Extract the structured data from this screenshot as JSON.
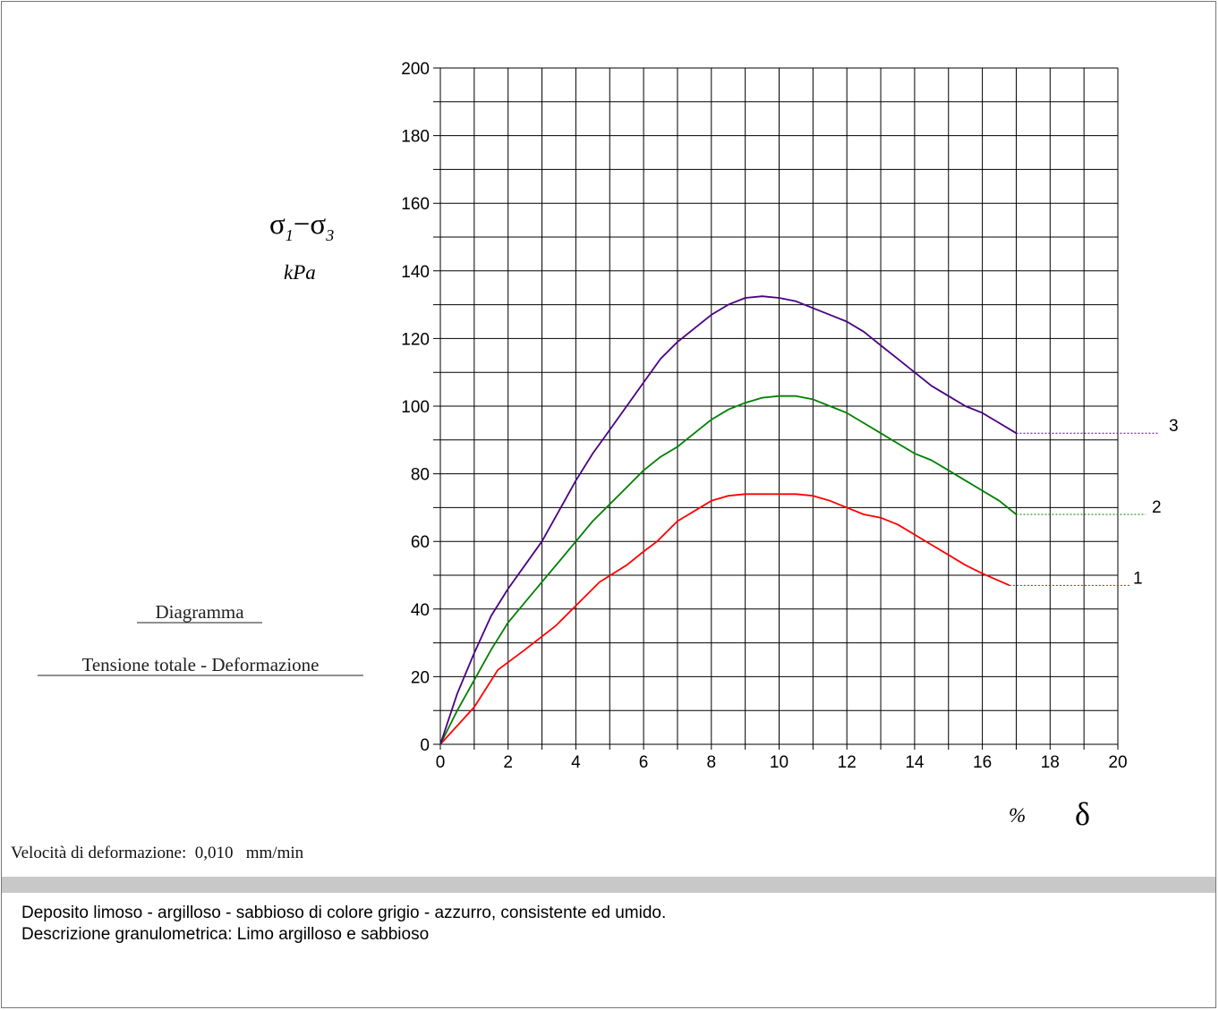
{
  "chart_data": {
    "type": "line",
    "y_label_main": "σ1−σ3",
    "y_label_sub1": "1",
    "y_label_sub3": "3",
    "y_unit": "kPa",
    "x_unit": "%",
    "x_symbol": "δ",
    "xlim": [
      0,
      20
    ],
    "ylim": [
      0,
      200
    ],
    "x_ticks": [
      "0",
      "2",
      "4",
      "6",
      "8",
      "10",
      "12",
      "14",
      "16",
      "18",
      "20"
    ],
    "y_ticks": [
      "0",
      "20",
      "40",
      "60",
      "80",
      "100",
      "120",
      "140",
      "160",
      "180",
      "200"
    ],
    "grid": true,
    "colors": {
      "1": "#ff0000",
      "2": "#008000",
      "3": "#4b0082"
    },
    "series": [
      {
        "name": "1",
        "color": "#ff0000",
        "x": [
          0,
          1,
          1.7,
          2.5,
          3.4,
          4.2,
          4.7,
          5.5,
          6,
          6.4,
          7,
          7.5,
          8,
          8.5,
          9,
          9.5,
          10,
          10.5,
          11,
          11.5,
          12,
          12.5,
          13,
          13.5,
          14,
          14.5,
          15,
          15.5,
          16,
          16.8
        ],
        "y": [
          0,
          11,
          22,
          28,
          35,
          43,
          48,
          53,
          57,
          60,
          66,
          69,
          72,
          73.5,
          74,
          74,
          74,
          74,
          73.5,
          72,
          70,
          68,
          67,
          65,
          62,
          59,
          56,
          53,
          50.5,
          47
        ]
      },
      {
        "name": "2",
        "color": "#008000",
        "x": [
          0,
          0.5,
          1,
          1.5,
          2,
          2.5,
          3,
          3.5,
          4,
          4.5,
          5,
          5.5,
          6,
          6.5,
          7,
          7.5,
          8,
          8.5,
          9,
          9.5,
          10,
          10.5,
          11,
          11.5,
          12,
          12.5,
          13,
          13.5,
          14,
          14.5,
          15,
          15.5,
          16,
          16.5,
          17
        ],
        "y": [
          0,
          10,
          19,
          28,
          36,
          42,
          48,
          54,
          60,
          66,
          71,
          76,
          81,
          85,
          88,
          92,
          96,
          99,
          101,
          102.5,
          103,
          103,
          102,
          100,
          98,
          95,
          92,
          89,
          86,
          84,
          81,
          78,
          75,
          72,
          68
        ]
      },
      {
        "name": "3",
        "color": "#4b0082",
        "x": [
          0,
          0.5,
          1,
          1.5,
          2,
          2.5,
          3,
          3.5,
          4,
          4.5,
          5,
          5.5,
          6,
          6.5,
          7,
          7.5,
          8,
          8.5,
          9,
          9.5,
          10,
          10.5,
          11,
          11.5,
          12,
          12.5,
          13,
          13.5,
          14,
          14.5,
          15,
          15.5,
          16,
          16.5,
          17
        ],
        "y": [
          0,
          15,
          27,
          38,
          46,
          53,
          60,
          69,
          78,
          86,
          93,
          100,
          107,
          114,
          119,
          123,
          127,
          130,
          132,
          132.5,
          132,
          131,
          129,
          127,
          125,
          122,
          118,
          114,
          110,
          106,
          103,
          100,
          98,
          95,
          92
        ]
      }
    ],
    "caption_title": "Diagramma",
    "caption_subtitle": "Tensione totale - Deformazione"
  },
  "speed_text": "Velocità di deformazione:  0,010   mm/min",
  "description_line1": "Deposito limoso - argilloso - sabbioso di colore grigio - azzurro, consistente ed umido.",
  "description_line2": "Descrizione granulometrica: Limo argilloso e sabbioso"
}
